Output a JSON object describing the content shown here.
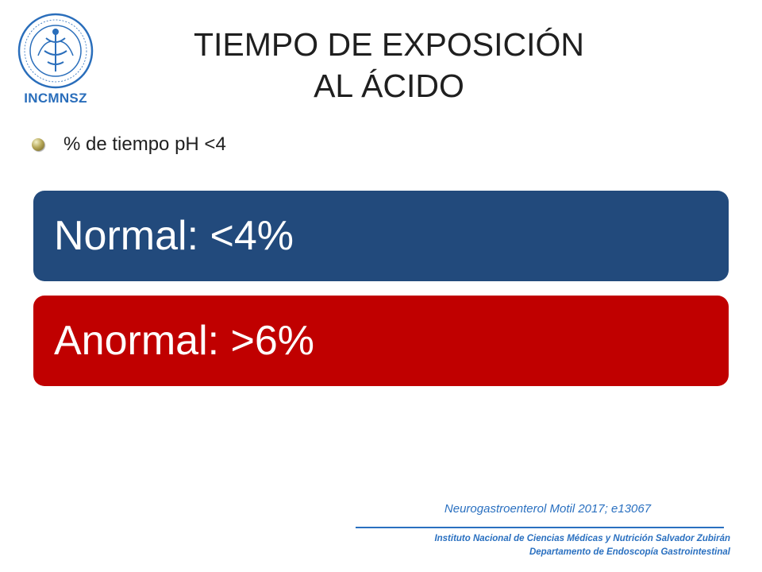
{
  "logo": {
    "text": "INCMNSZ",
    "ring_text": "INSTITUTO NACIONAL DE CIENCIAS MÉDICAS Y NUTRICIÓN SALVADOR ZUBIRÁN",
    "color": "#2a6ebb"
  },
  "title": {
    "line1": "TIEMPO DE EXPOSICIÓN",
    "line2": "AL ÁCIDO"
  },
  "bullet": {
    "text": "% de tiempo pH <4",
    "icon": "bullet-sphere-icon"
  },
  "boxes": [
    {
      "label": "Normal: <4%",
      "color": "#224a7c"
    },
    {
      "label": "Anormal: >6%",
      "color": "#c00000"
    }
  ],
  "footer": {
    "citation": "Neurogastroenterol  Motil 2017; e13067",
    "institute": "Instituto Nacional de Ciencias Médicas y Nutrición Salvador Zubirán",
    "department": "Departamento de Endoscopía Gastrointestinal",
    "color": "#2a70c0"
  }
}
